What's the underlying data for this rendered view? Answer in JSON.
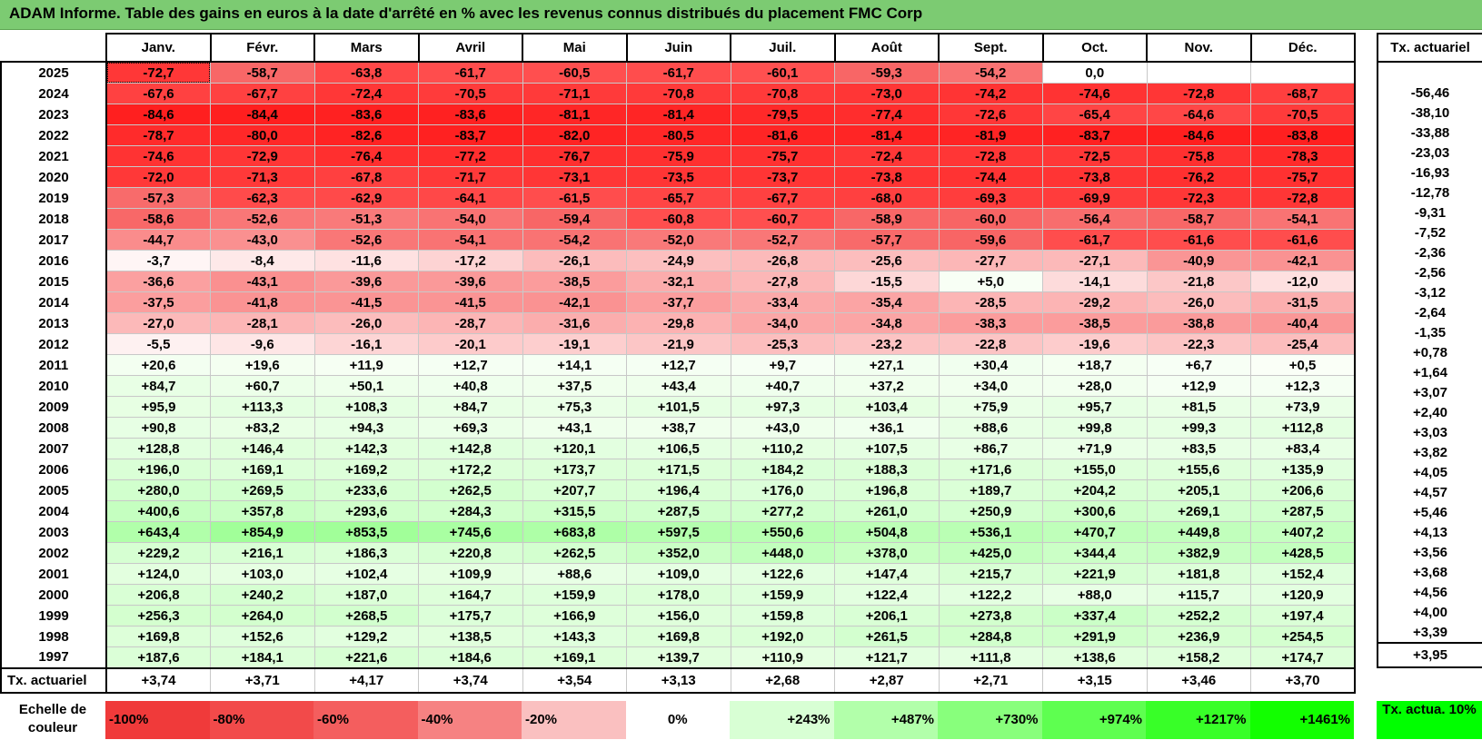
{
  "title": "ADAM Informe. Table des gains en euros à la date d'arrêté en % avec les revenus connus distribués du placement FMC Corp",
  "months": [
    "Janv.",
    "Févr.",
    "Mars",
    "Avril",
    "Mai",
    "Juin",
    "Juil.",
    "Août",
    "Sept.",
    "Oct.",
    "Nov.",
    "Déc."
  ],
  "side_header": "Tx. actuariel",
  "rows": [
    {
      "year": "2025",
      "vals": [
        "-72,7",
        "-58,7",
        "-63,8",
        "-61,7",
        "-60,5",
        "-61,7",
        "-60,1",
        "-59,3",
        "-54,2",
        "0,0",
        "",
        ""
      ],
      "act": ""
    },
    {
      "year": "2024",
      "vals": [
        "-67,6",
        "-67,7",
        "-72,4",
        "-70,5",
        "-71,1",
        "-70,8",
        "-70,8",
        "-73,0",
        "-74,2",
        "-74,6",
        "-72,8",
        "-68,7"
      ],
      "act": "-56,46"
    },
    {
      "year": "2023",
      "vals": [
        "-84,6",
        "-84,4",
        "-83,6",
        "-83,6",
        "-81,1",
        "-81,4",
        "-79,5",
        "-77,4",
        "-72,6",
        "-65,4",
        "-64,6",
        "-70,5"
      ],
      "act": "-38,10"
    },
    {
      "year": "2022",
      "vals": [
        "-78,7",
        "-80,0",
        "-82,6",
        "-83,7",
        "-82,0",
        "-80,5",
        "-81,6",
        "-81,4",
        "-81,9",
        "-83,7",
        "-84,6",
        "-83,8"
      ],
      "act": "-33,88"
    },
    {
      "year": "2021",
      "vals": [
        "-74,6",
        "-72,9",
        "-76,4",
        "-77,2",
        "-76,7",
        "-75,9",
        "-75,7",
        "-72,4",
        "-72,8",
        "-72,5",
        "-75,8",
        "-78,3"
      ],
      "act": "-23,03"
    },
    {
      "year": "2020",
      "vals": [
        "-72,0",
        "-71,3",
        "-67,8",
        "-71,7",
        "-73,1",
        "-73,5",
        "-73,7",
        "-73,8",
        "-74,4",
        "-73,8",
        "-76,2",
        "-75,7"
      ],
      "act": "-16,93"
    },
    {
      "year": "2019",
      "vals": [
        "-57,3",
        "-62,3",
        "-62,9",
        "-64,1",
        "-61,5",
        "-65,7",
        "-67,7",
        "-68,0",
        "-69,3",
        "-69,9",
        "-72,3",
        "-72,8"
      ],
      "act": "-12,78"
    },
    {
      "year": "2018",
      "vals": [
        "-58,6",
        "-52,6",
        "-51,3",
        "-54,0",
        "-59,4",
        "-60,8",
        "-60,7",
        "-58,9",
        "-60,0",
        "-56,4",
        "-58,7",
        "-54,1"
      ],
      "act": "-9,31"
    },
    {
      "year": "2017",
      "vals": [
        "-44,7",
        "-43,0",
        "-52,6",
        "-54,1",
        "-54,2",
        "-52,0",
        "-52,7",
        "-57,7",
        "-59,6",
        "-61,7",
        "-61,6",
        "-61,6"
      ],
      "act": "-7,52"
    },
    {
      "year": "2016",
      "vals": [
        "-3,7",
        "-8,4",
        "-11,6",
        "-17,2",
        "-26,1",
        "-24,9",
        "-26,8",
        "-25,6",
        "-27,7",
        "-27,1",
        "-40,9",
        "-42,1"
      ],
      "act": "-2,36"
    },
    {
      "year": "2015",
      "vals": [
        "-36,6",
        "-43,1",
        "-39,6",
        "-39,6",
        "-38,5",
        "-32,1",
        "-27,8",
        "-15,5",
        "+5,0",
        "-14,1",
        "-21,8",
        "-12,0"
      ],
      "act": "-2,56"
    },
    {
      "year": "2014",
      "vals": [
        "-37,5",
        "-41,8",
        "-41,5",
        "-41,5",
        "-42,1",
        "-37,7",
        "-33,4",
        "-35,4",
        "-28,5",
        "-29,2",
        "-26,0",
        "-31,5"
      ],
      "act": "-3,12"
    },
    {
      "year": "2013",
      "vals": [
        "-27,0",
        "-28,1",
        "-26,0",
        "-28,7",
        "-31,6",
        "-29,8",
        "-34,0",
        "-34,8",
        "-38,3",
        "-38,5",
        "-38,8",
        "-40,4"
      ],
      "act": "-2,64"
    },
    {
      "year": "2012",
      "vals": [
        "-5,5",
        "-9,6",
        "-16,1",
        "-20,1",
        "-19,1",
        "-21,9",
        "-25,3",
        "-23,2",
        "-22,8",
        "-19,6",
        "-22,3",
        "-25,4"
      ],
      "act": "-1,35"
    },
    {
      "year": "2011",
      "vals": [
        "+20,6",
        "+19,6",
        "+11,9",
        "+12,7",
        "+14,1",
        "+12,7",
        "+9,7",
        "+27,1",
        "+30,4",
        "+18,7",
        "+6,7",
        "+0,5"
      ],
      "act": "+0,78"
    },
    {
      "year": "2010",
      "vals": [
        "+84,7",
        "+60,7",
        "+50,1",
        "+40,8",
        "+37,5",
        "+43,4",
        "+40,7",
        "+37,2",
        "+34,0",
        "+28,0",
        "+12,9",
        "+12,3"
      ],
      "act": "+1,64"
    },
    {
      "year": "2009",
      "vals": [
        "+95,9",
        "+113,3",
        "+108,3",
        "+84,7",
        "+75,3",
        "+101,5",
        "+97,3",
        "+103,4",
        "+75,9",
        "+95,7",
        "+81,5",
        "+73,9"
      ],
      "act": "+3,07"
    },
    {
      "year": "2008",
      "vals": [
        "+90,8",
        "+83,2",
        "+94,3",
        "+69,3",
        "+43,1",
        "+38,7",
        "+43,0",
        "+36,1",
        "+88,6",
        "+99,8",
        "+99,3",
        "+112,8"
      ],
      "act": "+2,40"
    },
    {
      "year": "2007",
      "vals": [
        "+128,8",
        "+146,4",
        "+142,3",
        "+142,8",
        "+120,1",
        "+106,5",
        "+110,2",
        "+107,5",
        "+86,7",
        "+71,9",
        "+83,5",
        "+83,4"
      ],
      "act": "+3,03"
    },
    {
      "year": "2006",
      "vals": [
        "+196,0",
        "+169,1",
        "+169,2",
        "+172,2",
        "+173,7",
        "+171,5",
        "+184,2",
        "+188,3",
        "+171,6",
        "+155,0",
        "+155,6",
        "+135,9"
      ],
      "act": "+3,82"
    },
    {
      "year": "2005",
      "vals": [
        "+280,0",
        "+269,5",
        "+233,6",
        "+262,5",
        "+207,7",
        "+196,4",
        "+176,0",
        "+196,8",
        "+189,7",
        "+204,2",
        "+205,1",
        "+206,6"
      ],
      "act": "+4,05"
    },
    {
      "year": "2004",
      "vals": [
        "+400,6",
        "+357,8",
        "+293,6",
        "+284,3",
        "+315,5",
        "+287,5",
        "+277,2",
        "+261,0",
        "+250,9",
        "+300,6",
        "+269,1",
        "+287,5"
      ],
      "act": "+4,57"
    },
    {
      "year": "2003",
      "vals": [
        "+643,4",
        "+854,9",
        "+853,5",
        "+745,6",
        "+683,8",
        "+597,5",
        "+550,6",
        "+504,8",
        "+536,1",
        "+470,7",
        "+449,8",
        "+407,2"
      ],
      "act": "+5,46"
    },
    {
      "year": "2002",
      "vals": [
        "+229,2",
        "+216,1",
        "+186,3",
        "+220,8",
        "+262,5",
        "+352,0",
        "+448,0",
        "+378,0",
        "+425,0",
        "+344,4",
        "+382,9",
        "+428,5"
      ],
      "act": "+4,13"
    },
    {
      "year": "2001",
      "vals": [
        "+124,0",
        "+103,0",
        "+102,4",
        "+109,9",
        "+88,6",
        "+109,0",
        "+122,6",
        "+147,4",
        "+215,7",
        "+221,9",
        "+181,8",
        "+152,4"
      ],
      "act": "+3,56"
    },
    {
      "year": "2000",
      "vals": [
        "+206,8",
        "+240,2",
        "+187,0",
        "+164,7",
        "+159,9",
        "+178,0",
        "+159,9",
        "+122,4",
        "+122,2",
        "+88,0",
        "+115,7",
        "+120,9"
      ],
      "act": "+3,68"
    },
    {
      "year": "1999",
      "vals": [
        "+256,3",
        "+264,0",
        "+268,5",
        "+175,7",
        "+166,9",
        "+156,0",
        "+159,8",
        "+206,1",
        "+273,8",
        "+337,4",
        "+252,2",
        "+197,4"
      ],
      "act": "+4,56"
    },
    {
      "year": "1998",
      "vals": [
        "+169,8",
        "+152,6",
        "+129,2",
        "+138,5",
        "+143,3",
        "+169,8",
        "+192,0",
        "+261,5",
        "+284,8",
        "+291,9",
        "+236,9",
        "+254,5"
      ],
      "act": "+4,00"
    },
    {
      "year": "1997",
      "vals": [
        "+187,6",
        "+184,1",
        "+221,6",
        "+184,6",
        "+169,1",
        "+139,7",
        "+110,9",
        "+121,7",
        "+111,8",
        "+138,6",
        "+158,2",
        "+174,7"
      ],
      "act": "+3,39"
    }
  ],
  "footer": {
    "label": "Tx. actuariel",
    "vals": [
      "+3,74",
      "+3,71",
      "+4,17",
      "+3,74",
      "+3,54",
      "+3,13",
      "+2,68",
      "+2,87",
      "+2,71",
      "+3,15",
      "+3,46",
      "+3,70"
    ],
    "act": "+3,95"
  },
  "scale": {
    "label": "Echelle de couleur",
    "items": [
      {
        "text": "-100%",
        "color": "#f03a3a"
      },
      {
        "text": "-80%",
        "color": "#f24a4a"
      },
      {
        "text": "-60%",
        "color": "#f45e5e"
      },
      {
        "text": "-40%",
        "color": "#f68282"
      },
      {
        "text": "-20%",
        "color": "#fac0c0"
      },
      {
        "text": "0%",
        "color": "#ffffff"
      },
      {
        "text": "+243%",
        "color": "#d8ffd4"
      },
      {
        "text": "+487%",
        "color": "#b2ffaa"
      },
      {
        "text": "+730%",
        "color": "#88ff7c"
      },
      {
        "text": "+974%",
        "color": "#5eff50"
      },
      {
        "text": "+1217%",
        "color": "#38ff28"
      },
      {
        "text": "+1461%",
        "color": "#12ff00"
      }
    ],
    "act_label": "Tx. actua. 10%",
    "act_color": "#00ff00"
  }
}
